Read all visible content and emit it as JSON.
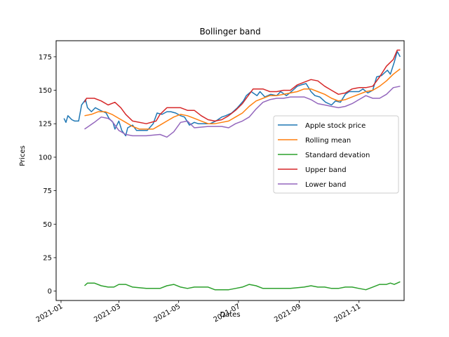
{
  "chart_data": {
    "type": "line",
    "title": "Bollinger band",
    "xlabel": "Dates",
    "ylabel": "Prices",
    "x_range": [
      "2020-12-27",
      "2021-12-17"
    ],
    "ylim": [
      -7,
      187
    ],
    "x_ticks": [
      {
        "date": "2021-01-01",
        "label": "2021-01"
      },
      {
        "date": "2021-03-01",
        "label": "2021-03"
      },
      {
        "date": "2021-05-01",
        "label": "2021-05"
      },
      {
        "date": "2021-07-01",
        "label": "2021-07"
      },
      {
        "date": "2021-09-01",
        "label": "2021-09"
      },
      {
        "date": "2021-11-01",
        "label": "2021-11"
      }
    ],
    "y_ticks": [
      0,
      25,
      50,
      75,
      100,
      125,
      150,
      175
    ],
    "grid": false,
    "legend_position": "center-right",
    "series": [
      {
        "name": "Apple stock price",
        "color": "#1f77b4",
        "points": [
          [
            "2021-01-04",
            129
          ],
          [
            "2021-01-06",
            126
          ],
          [
            "2021-01-08",
            131
          ],
          [
            "2021-01-12",
            128
          ],
          [
            "2021-01-15",
            127
          ],
          [
            "2021-01-19",
            127
          ],
          [
            "2021-01-22",
            139
          ],
          [
            "2021-01-26",
            143
          ],
          [
            "2021-01-28",
            137
          ],
          [
            "2021-02-01",
            134
          ],
          [
            "2021-02-05",
            137
          ],
          [
            "2021-02-10",
            135
          ],
          [
            "2021-02-16",
            133
          ],
          [
            "2021-02-19",
            129
          ],
          [
            "2021-02-23",
            126
          ],
          [
            "2021-02-25",
            121
          ],
          [
            "2021-03-01",
            127
          ],
          [
            "2021-03-04",
            120
          ],
          [
            "2021-03-08",
            116
          ],
          [
            "2021-03-10",
            122
          ],
          [
            "2021-03-15",
            124
          ],
          [
            "2021-03-19",
            120
          ],
          [
            "2021-03-24",
            120
          ],
          [
            "2021-03-30",
            120
          ],
          [
            "2021-04-05",
            125
          ],
          [
            "2021-04-09",
            133
          ],
          [
            "2021-04-14",
            132
          ],
          [
            "2021-04-19",
            134
          ],
          [
            "2021-04-23",
            134
          ],
          [
            "2021-04-28",
            133
          ],
          [
            "2021-05-03",
            131
          ],
          [
            "2021-05-07",
            130
          ],
          [
            "2021-05-12",
            124
          ],
          [
            "2021-05-17",
            126
          ],
          [
            "2021-05-21",
            125
          ],
          [
            "2021-05-27",
            125
          ],
          [
            "2021-06-02",
            125
          ],
          [
            "2021-06-08",
            127
          ],
          [
            "2021-06-14",
            130
          ],
          [
            "2021-06-18",
            131
          ],
          [
            "2021-06-24",
            133
          ],
          [
            "2021-06-30",
            137
          ],
          [
            "2021-07-06",
            142
          ],
          [
            "2021-07-09",
            146
          ],
          [
            "2021-07-14",
            149
          ],
          [
            "2021-07-20",
            146
          ],
          [
            "2021-07-23",
            149
          ],
          [
            "2021-07-28",
            145
          ],
          [
            "2021-08-03",
            147
          ],
          [
            "2021-08-09",
            146
          ],
          [
            "2021-08-13",
            149
          ],
          [
            "2021-08-19",
            146
          ],
          [
            "2021-08-24",
            149
          ],
          [
            "2021-08-30",
            153
          ],
          [
            "2021-09-03",
            154
          ],
          [
            "2021-09-08",
            155
          ],
          [
            "2021-09-13",
            149
          ],
          [
            "2021-09-17",
            146
          ],
          [
            "2021-09-22",
            145
          ],
          [
            "2021-09-28",
            141
          ],
          [
            "2021-10-04",
            139
          ],
          [
            "2021-10-08",
            142
          ],
          [
            "2021-10-13",
            141
          ],
          [
            "2021-10-18",
            147
          ],
          [
            "2021-10-22",
            149
          ],
          [
            "2021-10-27",
            149
          ],
          [
            "2021-11-01",
            149
          ],
          [
            "2021-11-05",
            151
          ],
          [
            "2021-11-10",
            148
          ],
          [
            "2021-11-15",
            150
          ],
          [
            "2021-11-19",
            160
          ],
          [
            "2021-11-24",
            161
          ],
          [
            "2021-11-30",
            165
          ],
          [
            "2021-12-03",
            162
          ],
          [
            "2021-12-07",
            171
          ],
          [
            "2021-12-10",
            179
          ],
          [
            "2021-12-13",
            175
          ]
        ]
      },
      {
        "name": "Rolling mean",
        "color": "#ff7f0e",
        "points": [
          [
            "2021-01-25",
            131
          ],
          [
            "2021-02-01",
            132
          ],
          [
            "2021-02-08",
            134
          ],
          [
            "2021-02-15",
            134
          ],
          [
            "2021-02-22",
            132
          ],
          [
            "2021-03-01",
            129
          ],
          [
            "2021-03-08",
            126
          ],
          [
            "2021-03-15",
            123
          ],
          [
            "2021-03-22",
            121
          ],
          [
            "2021-03-29",
            121
          ],
          [
            "2021-04-05",
            121
          ],
          [
            "2021-04-12",
            124
          ],
          [
            "2021-04-19",
            127
          ],
          [
            "2021-04-26",
            130
          ],
          [
            "2021-05-03",
            132
          ],
          [
            "2021-05-10",
            131
          ],
          [
            "2021-05-17",
            129
          ],
          [
            "2021-05-24",
            127
          ],
          [
            "2021-05-31",
            125
          ],
          [
            "2021-06-07",
            125
          ],
          [
            "2021-06-14",
            126
          ],
          [
            "2021-06-21",
            127
          ],
          [
            "2021-06-28",
            130
          ],
          [
            "2021-07-05",
            133
          ],
          [
            "2021-07-12",
            138
          ],
          [
            "2021-07-19",
            142
          ],
          [
            "2021-07-26",
            144
          ],
          [
            "2021-08-02",
            146
          ],
          [
            "2021-08-09",
            146
          ],
          [
            "2021-08-16",
            147
          ],
          [
            "2021-08-23",
            148
          ],
          [
            "2021-08-30",
            149
          ],
          [
            "2021-09-06",
            151
          ],
          [
            "2021-09-13",
            151
          ],
          [
            "2021-09-20",
            149
          ],
          [
            "2021-09-27",
            147
          ],
          [
            "2021-10-04",
            144
          ],
          [
            "2021-10-11",
            142
          ],
          [
            "2021-10-18",
            143
          ],
          [
            "2021-10-25",
            145
          ],
          [
            "2021-11-01",
            147
          ],
          [
            "2021-11-08",
            149
          ],
          [
            "2021-11-15",
            150
          ],
          [
            "2021-11-22",
            153
          ],
          [
            "2021-11-29",
            157
          ],
          [
            "2021-12-06",
            162
          ],
          [
            "2021-12-13",
            166
          ]
        ]
      },
      {
        "name": "Standard devation",
        "color": "#2ca02c",
        "points": [
          [
            "2021-01-25",
            4
          ],
          [
            "2021-01-28",
            6
          ],
          [
            "2021-02-04",
            6
          ],
          [
            "2021-02-11",
            4
          ],
          [
            "2021-02-18",
            3
          ],
          [
            "2021-02-24",
            3
          ],
          [
            "2021-03-01",
            5
          ],
          [
            "2021-03-08",
            5
          ],
          [
            "2021-03-15",
            3
          ],
          [
            "2021-03-29",
            2
          ],
          [
            "2021-04-12",
            2
          ],
          [
            "2021-04-19",
            4
          ],
          [
            "2021-04-26",
            5
          ],
          [
            "2021-05-03",
            3
          ],
          [
            "2021-05-10",
            2
          ],
          [
            "2021-05-17",
            3
          ],
          [
            "2021-05-24",
            3
          ],
          [
            "2021-05-31",
            3
          ],
          [
            "2021-06-07",
            1
          ],
          [
            "2021-06-21",
            1
          ],
          [
            "2021-06-28",
            2
          ],
          [
            "2021-07-05",
            3
          ],
          [
            "2021-07-12",
            5
          ],
          [
            "2021-07-19",
            4
          ],
          [
            "2021-07-26",
            2
          ],
          [
            "2021-08-09",
            2
          ],
          [
            "2021-08-23",
            2
          ],
          [
            "2021-09-06",
            3
          ],
          [
            "2021-09-13",
            4
          ],
          [
            "2021-09-20",
            3
          ],
          [
            "2021-09-27",
            3
          ],
          [
            "2021-10-04",
            2
          ],
          [
            "2021-10-11",
            2
          ],
          [
            "2021-10-18",
            3
          ],
          [
            "2021-10-25",
            3
          ],
          [
            "2021-11-01",
            2
          ],
          [
            "2021-11-08",
            1
          ],
          [
            "2021-11-15",
            3
          ],
          [
            "2021-11-22",
            5
          ],
          [
            "2021-11-29",
            5
          ],
          [
            "2021-12-03",
            6
          ],
          [
            "2021-12-07",
            5
          ],
          [
            "2021-12-13",
            7
          ]
        ]
      },
      {
        "name": "Upper band",
        "color": "#d62728",
        "points": [
          [
            "2021-01-25",
            141
          ],
          [
            "2021-01-27",
            144
          ],
          [
            "2021-02-04",
            144
          ],
          [
            "2021-02-11",
            142
          ],
          [
            "2021-02-18",
            139
          ],
          [
            "2021-02-25",
            141
          ],
          [
            "2021-03-03",
            137
          ],
          [
            "2021-03-08",
            132
          ],
          [
            "2021-03-15",
            127
          ],
          [
            "2021-03-29",
            125
          ],
          [
            "2021-04-08",
            127
          ],
          [
            "2021-04-12",
            132
          ],
          [
            "2021-04-19",
            137
          ],
          [
            "2021-04-26",
            137
          ],
          [
            "2021-05-03",
            137
          ],
          [
            "2021-05-10",
            135
          ],
          [
            "2021-05-17",
            135
          ],
          [
            "2021-05-24",
            131
          ],
          [
            "2021-05-31",
            128
          ],
          [
            "2021-06-07",
            127
          ],
          [
            "2021-06-14",
            128
          ],
          [
            "2021-06-21",
            131
          ],
          [
            "2021-06-28",
            135
          ],
          [
            "2021-07-05",
            140
          ],
          [
            "2021-07-12",
            147
          ],
          [
            "2021-07-16",
            151
          ],
          [
            "2021-07-26",
            151
          ],
          [
            "2021-08-02",
            149
          ],
          [
            "2021-08-09",
            149
          ],
          [
            "2021-08-16",
            150
          ],
          [
            "2021-08-23",
            150
          ],
          [
            "2021-08-30",
            154
          ],
          [
            "2021-09-06",
            156
          ],
          [
            "2021-09-13",
            158
          ],
          [
            "2021-09-20",
            157
          ],
          [
            "2021-09-27",
            153
          ],
          [
            "2021-10-04",
            150
          ],
          [
            "2021-10-11",
            147
          ],
          [
            "2021-10-18",
            148
          ],
          [
            "2021-10-25",
            151
          ],
          [
            "2021-11-01",
            152
          ],
          [
            "2021-11-08",
            152
          ],
          [
            "2021-11-15",
            153
          ],
          [
            "2021-11-22",
            160
          ],
          [
            "2021-11-29",
            168
          ],
          [
            "2021-12-06",
            173
          ],
          [
            "2021-12-10",
            180
          ],
          [
            "2021-12-13",
            180
          ]
        ]
      },
      {
        "name": "Lower band",
        "color": "#9467bd",
        "points": [
          [
            "2021-01-25",
            121
          ],
          [
            "2021-01-27",
            122
          ],
          [
            "2021-02-04",
            126
          ],
          [
            "2021-02-11",
            130
          ],
          [
            "2021-02-18",
            129
          ],
          [
            "2021-02-22",
            127
          ],
          [
            "2021-03-01",
            120
          ],
          [
            "2021-03-08",
            117
          ],
          [
            "2021-03-15",
            116
          ],
          [
            "2021-03-29",
            116
          ],
          [
            "2021-04-12",
            117
          ],
          [
            "2021-04-19",
            115
          ],
          [
            "2021-04-26",
            119
          ],
          [
            "2021-05-03",
            126
          ],
          [
            "2021-05-10",
            127
          ],
          [
            "2021-05-17",
            122
          ],
          [
            "2021-05-31",
            123
          ],
          [
            "2021-06-14",
            123
          ],
          [
            "2021-06-21",
            122
          ],
          [
            "2021-06-28",
            125
          ],
          [
            "2021-07-05",
            127
          ],
          [
            "2021-07-12",
            130
          ],
          [
            "2021-07-19",
            136
          ],
          [
            "2021-07-26",
            141
          ],
          [
            "2021-08-02",
            143
          ],
          [
            "2021-08-09",
            144
          ],
          [
            "2021-08-16",
            144
          ],
          [
            "2021-08-23",
            145
          ],
          [
            "2021-08-30",
            145
          ],
          [
            "2021-09-06",
            145
          ],
          [
            "2021-09-13",
            143
          ],
          [
            "2021-09-20",
            140
          ],
          [
            "2021-09-27",
            139
          ],
          [
            "2021-10-04",
            138
          ],
          [
            "2021-10-11",
            137
          ],
          [
            "2021-10-18",
            138
          ],
          [
            "2021-10-25",
            140
          ],
          [
            "2021-11-01",
            143
          ],
          [
            "2021-11-08",
            146
          ],
          [
            "2021-11-15",
            144
          ],
          [
            "2021-11-22",
            144
          ],
          [
            "2021-11-29",
            147
          ],
          [
            "2021-12-06",
            152
          ],
          [
            "2021-12-13",
            153
          ]
        ]
      }
    ]
  }
}
